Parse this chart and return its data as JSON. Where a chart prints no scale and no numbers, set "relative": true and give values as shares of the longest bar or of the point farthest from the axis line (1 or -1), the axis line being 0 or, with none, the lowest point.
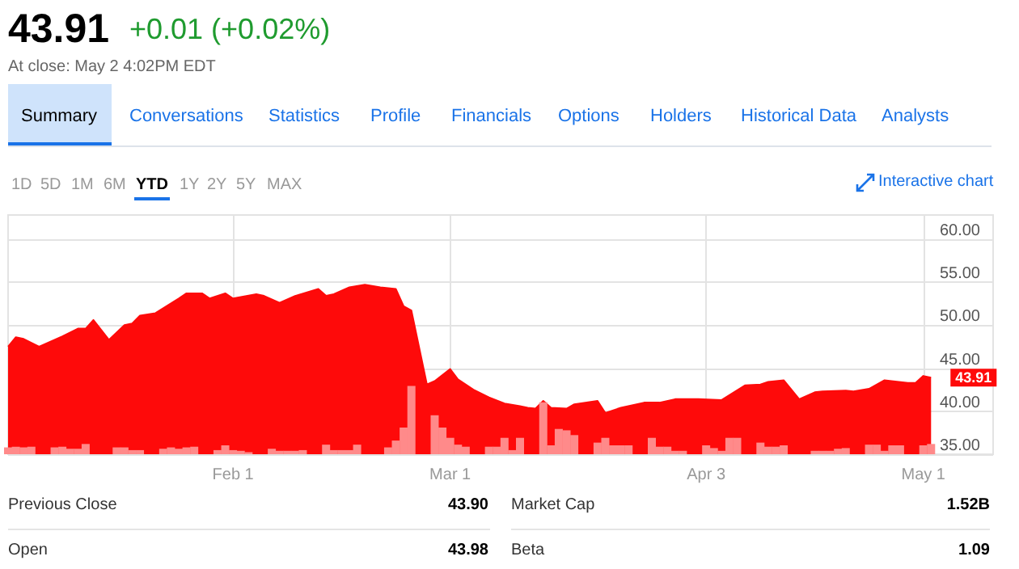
{
  "chart_data": [
    {
      "type": "area",
      "title": "43.91",
      "subtitle": "+0.01 (+0.02%)",
      "annotations": [
        "At close: May 2 4:02PM EDT",
        "Summary",
        "Conversations",
        "Statistics",
        "Profile",
        "Financials",
        "Options",
        "Holders",
        "Historical Data",
        "Analysts",
        "1D",
        "5D",
        "1M",
        "6M",
        "YTD",
        "1Y",
        "2Y",
        "5Y",
        "MAX",
        "Interactive chart",
        "Previous Close",
        "43.90",
        "Open",
        "43.98",
        "Market Cap",
        "1.52B",
        "Beta",
        "1.09"
      ],
      "xlim": [
        "--01-03",
        "--05-10"
      ],
      "xticks": [
        {
          "value": "--02-01",
          "label": "Feb 1"
        },
        {
          "value": "--03-01",
          "label": "Mar 1"
        },
        {
          "value": "--04-03",
          "label": "Apr 3"
        },
        {
          "value": "--05-01",
          "label": "May 1"
        }
      ],
      "ylim": [
        35,
        62.8
      ],
      "yticks": [
        {
          "value": 35,
          "label": "35.00"
        },
        {
          "value": 40,
          "label": "40.00"
        },
        {
          "value": 45,
          "label": "45.00"
        },
        {
          "value": 50,
          "label": "50.00"
        },
        {
          "value": 55,
          "label": "55.00"
        },
        {
          "value": 60,
          "label": "60.00"
        }
      ],
      "grid": true,
      "series": [
        {
          "color": "#fe0a0a",
          "x": [
            "--01-03",
            "--01-04",
            "--01-05",
            "--01-07",
            "--01-10",
            "--01-12",
            "--01-13",
            "--01-14",
            "--01-16",
            "--01-18",
            "--01-19",
            "--01-20",
            "--01-22",
            "--01-25",
            "--01-26",
            "--01-28",
            "--01-29",
            "--01-31",
            "--02-01",
            "--02-04",
            "--02-05",
            "--02-07",
            "--02-09",
            "--02-12",
            "--02-13",
            "--02-14",
            "--02-16",
            "--02-18",
            "--02-20",
            "--02-22",
            "--02-23",
            "--02-24",
            "--02-26",
            "--02-27",
            "--03-01",
            "--03-02",
            "--03-04",
            "--03-06",
            "--03-08",
            "--03-10",
            "--03-11",
            "--03-12",
            "--03-13",
            "--03-14",
            "--03-16",
            "--03-17",
            "--03-20",
            "--03-21",
            "--03-23",
            "--03-26",
            "--03-28",
            "--03-30",
            "--04-02",
            "--04-05",
            "--04-08",
            "--04-10",
            "--04-11",
            "--04-13",
            "--04-15",
            "--04-17",
            "--04-18",
            "--04-21",
            "--04-22",
            "--04-24",
            "--04-26",
            "--04-29",
            "--04-30",
            "--05-01",
            "--05-02"
          ],
          "values": [
            47.5,
            48.6,
            48.4,
            47.5,
            48.7,
            49.6,
            49.6,
            50.6,
            48.3,
            50.0,
            50.2,
            51.1,
            51.4,
            53.1,
            53.7,
            53.7,
            53.1,
            53.7,
            53.1,
            53.6,
            53.4,
            52.6,
            53.4,
            54.2,
            53.4,
            53.6,
            54.4,
            54.7,
            54.4,
            54.2,
            52.2,
            51.7,
            43.1,
            43.5,
            44.9,
            43.7,
            42.5,
            41.6,
            40.9,
            40.6,
            40.4,
            40.3,
            41.2,
            40.4,
            40.3,
            40.8,
            41.2,
            39.8,
            40.4,
            41.0,
            41.0,
            41.4,
            41.4,
            41.3,
            43.0,
            43.1,
            43.4,
            43.6,
            41.4,
            42.2,
            42.3,
            42.4,
            42.3,
            42.6,
            43.6,
            43.3,
            43.3,
            44.1,
            43.91
          ],
          "value_labels": [
            null,
            null,
            null,
            null,
            null,
            null,
            null,
            null,
            null,
            null,
            null,
            null,
            null,
            null,
            null,
            null,
            null,
            null,
            null,
            null,
            null,
            null,
            null,
            null,
            null,
            null,
            null,
            null,
            null,
            null,
            null,
            null,
            null,
            null,
            null,
            null,
            null,
            null,
            null,
            null,
            null,
            null,
            null,
            null,
            null,
            null,
            null,
            null,
            null,
            null,
            null,
            null,
            null,
            null,
            null,
            null,
            null,
            null,
            null,
            null,
            null,
            null,
            null,
            null,
            null,
            null,
            null,
            null,
            "43.91"
          ]
        }
      ]
    },
    {
      "type": "bar",
      "relative": true,
      "color": "#ff8a8a",
      "xlim": [
        "--01-03",
        "--05-10"
      ],
      "x": [
        "--01-03",
        "--01-04",
        "--01-05",
        "--01-06",
        "--01-09",
        "--01-10",
        "--01-11",
        "--01-12",
        "--01-13",
        "--01-17",
        "--01-18",
        "--01-19",
        "--01-20",
        "--01-23",
        "--01-24",
        "--01-25",
        "--01-26",
        "--01-27",
        "--01-30",
        "--01-31",
        "--02-01",
        "--02-02",
        "--02-03",
        "--02-06",
        "--02-07",
        "--02-08",
        "--02-09",
        "--02-10",
        "--02-13",
        "--02-14",
        "--02-15",
        "--02-16",
        "--02-17",
        "--02-21",
        "--02-22",
        "--02-23",
        "--02-24",
        "--02-27",
        "--02-28",
        "--03-01",
        "--03-02",
        "--03-03",
        "--03-06",
        "--03-07",
        "--03-08",
        "--03-09",
        "--03-10",
        "--03-13",
        "--03-14",
        "--03-15",
        "--03-16",
        "--03-17",
        "--03-20",
        "--03-21",
        "--03-22",
        "--03-23",
        "--03-24",
        "--03-27",
        "--03-28",
        "--03-29",
        "--03-30",
        "--03-31",
        "--04-03",
        "--04-04",
        "--04-05",
        "--04-06",
        "--04-07",
        "--04-10",
        "--04-11",
        "--04-12",
        "--04-13",
        "--04-17",
        "--04-18",
        "--04-19",
        "--04-20",
        "--04-21",
        "--04-24",
        "--04-25",
        "--04-26",
        "--04-27",
        "--04-28",
        "--05-01",
        "--05-02"
      ],
      "values": [
        0.1,
        0.11,
        0.1,
        0.11,
        0.1,
        0.11,
        0.08,
        0.08,
        0.15,
        0.1,
        0.1,
        0.06,
        0.06,
        0.08,
        0.1,
        0.08,
        0.1,
        0.11,
        0.06,
        0.13,
        0.06,
        0.05,
        0.03,
        0.08,
        0.05,
        0.05,
        0.05,
        0.06,
        0.14,
        0.06,
        0.06,
        0.06,
        0.14,
        0.1,
        0.2,
        0.39,
        1,
        0.57,
        0.39,
        0.24,
        0.14,
        0.11,
        0.11,
        0.11,
        0.24,
        0.06,
        0.24,
        0.76,
        0.13,
        0.37,
        0.35,
        0.28,
        0.17,
        0.24,
        0.13,
        0.13,
        0.13,
        0.24,
        0.11,
        0.11,
        0.05,
        0.05,
        0.13,
        0.09,
        0.05,
        0.24,
        0.24,
        0.17,
        0.11,
        0.11,
        0.13,
        0.05,
        0.05,
        0.05,
        0.08,
        0.09,
        0.14,
        0.14,
        0.05,
        0.13,
        0.13,
        0.13,
        0.15
      ]
    }
  ]
}
